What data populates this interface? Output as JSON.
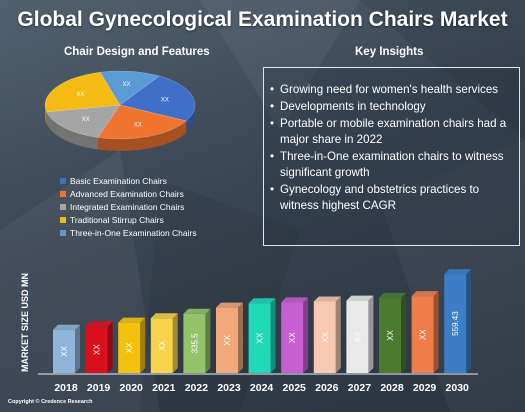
{
  "title": "Global Gynecological Examination Chairs Market",
  "left_panel": {
    "heading": "Chair Design and Features"
  },
  "right_panel": {
    "heading": "Key Insights",
    "insights": [
      "Growing need for women's health services",
      "Developments in technology",
      "Portable or mobile examination chairs had a major share in 2022",
      "Three-in-One examination chairs to witness significant growth",
      "Gynecology and obstetrics practices to witness highest CAGR"
    ]
  },
  "copyright": "Copyright © Credence Research",
  "colors": {
    "background": "#3f4a56",
    "accent": "#e6ebef"
  },
  "chart_data": [
    {
      "type": "pie",
      "title": "Chair Design and Features",
      "labels": [
        "Basic Examination Chairs",
        "Advanced Examination Chairs",
        "Integrated Examination Chairs",
        "Traditional Stirrup Chairs",
        "Three-in-One Examination Chairs"
      ],
      "colors": [
        "#3f6fc6",
        "#ee7430",
        "#a5a5a5",
        "#f5bb14",
        "#5b9bd5"
      ],
      "values": [
        24,
        22,
        17,
        24,
        13
      ],
      "data_labels": [
        "XX",
        "XX",
        "XX",
        "XX",
        "XX"
      ],
      "legend": "bottom"
    },
    {
      "type": "bar",
      "ylabel": "MARKET SIZE USD MN",
      "categories": [
        "2018",
        "2019",
        "2020",
        "2021",
        "2022",
        "2023",
        "2024",
        "2025",
        "2026",
        "2027",
        "2028",
        "2029",
        "2030"
      ],
      "values": [
        245,
        265,
        285,
        310,
        335.5,
        370,
        395,
        400,
        405,
        410,
        425,
        435,
        559.43
      ],
      "data_labels": [
        "XX",
        "XX",
        "XX",
        "XX",
        "335.5",
        "XX",
        "XX",
        "XX",
        "XX",
        "XX",
        "XX",
        "XX",
        "559.43"
      ],
      "colors": [
        "#8fb4d9",
        "#d9101c",
        "#f4c20d",
        "#f7d24a",
        "#93c46a",
        "#f1a87b",
        "#1fd9b9",
        "#c85fd1",
        "#f6c9b0",
        "#e9e9e9",
        "#4b7b2f",
        "#ee7d4a",
        "#3b7ec7"
      ],
      "ylim": [
        0,
        600
      ],
      "grid": false
    }
  ]
}
